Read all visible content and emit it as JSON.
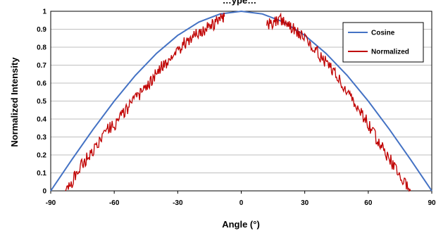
{
  "chart_data": {
    "type": "line",
    "title": "…ype…",
    "xlabel": "Angle (°)",
    "ylabel": "Normalized Intensity",
    "xlim": [
      -90,
      90
    ],
    "ylim": [
      0,
      1
    ],
    "xticks": [
      "-90",
      "-60",
      "-30",
      "0",
      "30",
      "60",
      "90"
    ],
    "yticks": [
      "0",
      "0.1",
      "0.2",
      "0.3",
      "0.4",
      "0.5",
      "0.6",
      "0.7",
      "0.8",
      "0.9",
      "1"
    ],
    "grid": "horizontal",
    "legend_position": "top-right",
    "series": [
      {
        "name": "Cosine",
        "color": "#4472C4",
        "x": [
          -90,
          -80,
          -70,
          -60,
          -50,
          -40,
          -30,
          -20,
          -10,
          0,
          10,
          20,
          30,
          40,
          50,
          60,
          70,
          80,
          90
        ],
        "y": [
          0,
          0.174,
          0.342,
          0.5,
          0.643,
          0.766,
          0.866,
          0.94,
          0.985,
          1,
          0.985,
          0.94,
          0.866,
          0.766,
          0.643,
          0.5,
          0.342,
          0.174,
          0
        ]
      },
      {
        "name": "Normalized",
        "color": "#C00000",
        "segments": [
          {
            "x": [
              -83,
              -81,
              -79,
              -77,
              -75,
              -73,
              -71,
              -69,
              -67,
              -65,
              -63,
              -61,
              -59,
              -57,
              -55,
              -53,
              -51,
              -49,
              -47,
              -45,
              -43,
              -41,
              -39,
              -37,
              -35,
              -33,
              -31,
              -29,
              -27,
              -25,
              -23,
              -21,
              -19,
              -17,
              -15,
              -13,
              -11,
              -9,
              -8
            ],
            "y": [
              0,
              0.02,
              0.07,
              0.11,
              0.15,
              0.18,
              0.21,
              0.25,
              0.28,
              0.3,
              0.34,
              0.36,
              0.38,
              0.42,
              0.44,
              0.47,
              0.5,
              0.52,
              0.55,
              0.58,
              0.61,
              0.64,
              0.67,
              0.7,
              0.72,
              0.75,
              0.77,
              0.79,
              0.82,
              0.84,
              0.86,
              0.87,
              0.89,
              0.9,
              0.92,
              0.93,
              0.95,
              0.96,
              0.97
            ]
          },
          {
            "x": [
              12,
              14,
              16,
              18,
              20,
              22,
              24,
              26,
              28,
              30,
              32,
              34,
              36,
              38,
              40,
              42,
              44,
              46,
              48,
              50,
              52,
              54,
              56,
              58,
              60,
              62,
              64,
              66,
              68,
              70,
              72,
              74,
              76,
              78,
              80
            ],
            "y": [
              0.92,
              0.93,
              0.94,
              0.96,
              0.95,
              0.93,
              0.91,
              0.89,
              0.87,
              0.84,
              0.82,
              0.8,
              0.77,
              0.74,
              0.72,
              0.69,
              0.66,
              0.62,
              0.59,
              0.56,
              0.52,
              0.48,
              0.44,
              0.41,
              0.37,
              0.33,
              0.29,
              0.25,
              0.21,
              0.18,
              0.14,
              0.11,
              0.07,
              0.03,
              0
            ]
          }
        ]
      }
    ]
  }
}
